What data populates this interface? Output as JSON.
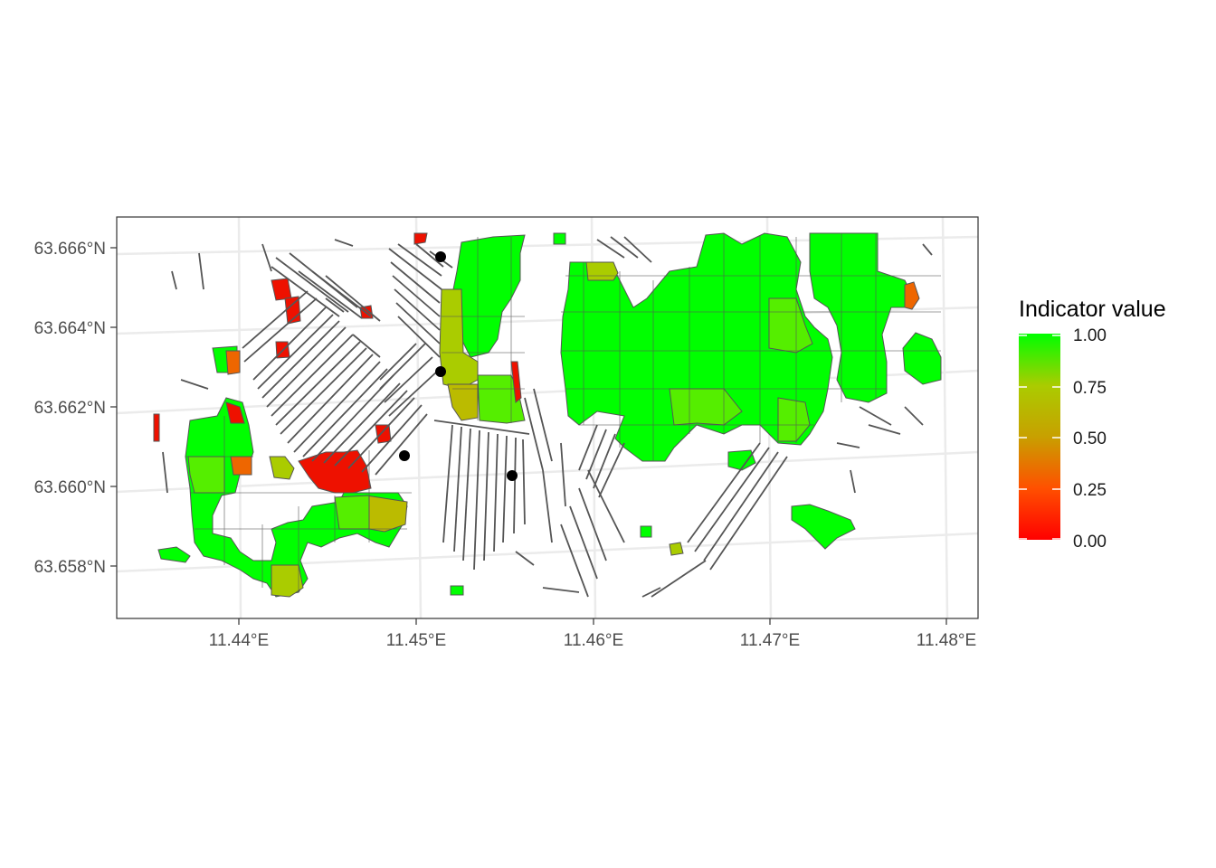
{
  "legend": {
    "title": "Indicator value",
    "ticks": [
      "1.00",
      "0.75",
      "0.50",
      "0.25",
      "0.00"
    ],
    "gradient": [
      "#00ff00",
      "#aacc00",
      "#e09a00",
      "#ff4400",
      "#ff0000"
    ]
  },
  "axes": {
    "y_ticks": [
      "63.666°N",
      "63.664°N",
      "63.662°N",
      "63.660°N",
      "63.658°N"
    ],
    "x_ticks": [
      "11.44°E",
      "11.45°E",
      "11.46°E",
      "11.47°E",
      "11.48°E"
    ]
  },
  "colors": {
    "green": "#00ff00",
    "light_green": "#55ee00",
    "yellow_green": "#aacc00",
    "olive": "#bbbb00",
    "orange": "#ee6600",
    "red": "#ee1100",
    "line": "#555555",
    "grid": "#ebebeb",
    "panel_border": "#333333"
  },
  "point_count": 4
}
